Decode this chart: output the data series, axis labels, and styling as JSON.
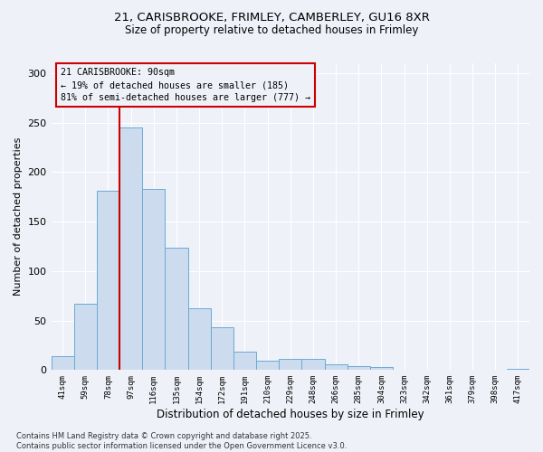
{
  "title_line1": "21, CARISBROOKE, FRIMLEY, CAMBERLEY, GU16 8XR",
  "title_line2": "Size of property relative to detached houses in Frimley",
  "xlabel": "Distribution of detached houses by size in Frimley",
  "ylabel": "Number of detached properties",
  "categories": [
    "41sqm",
    "59sqm",
    "78sqm",
    "97sqm",
    "116sqm",
    "135sqm",
    "154sqm",
    "172sqm",
    "191sqm",
    "210sqm",
    "229sqm",
    "248sqm",
    "266sqm",
    "285sqm",
    "304sqm",
    "323sqm",
    "342sqm",
    "361sqm",
    "379sqm",
    "398sqm",
    "417sqm"
  ],
  "values": [
    14,
    67,
    181,
    245,
    183,
    124,
    62,
    43,
    19,
    9,
    11,
    11,
    6,
    4,
    3,
    0,
    0,
    0,
    0,
    0,
    1
  ],
  "bar_color": "#ccdcee",
  "bar_edge_color": "#6aaad4",
  "vline_color": "#cc0000",
  "vline_x_index": 2,
  "annotation_text": "21 CARISBROOKE: 90sqm\n← 19% of detached houses are smaller (185)\n81% of semi-detached houses are larger (777) →",
  "annotation_box_color": "#cc0000",
  "ylim": [
    0,
    310
  ],
  "yticks": [
    0,
    50,
    100,
    150,
    200,
    250,
    300
  ],
  "bg_color": "#eef2f8",
  "footer": "Contains HM Land Registry data © Crown copyright and database right 2025.\nContains public sector information licensed under the Open Government Licence v3.0."
}
